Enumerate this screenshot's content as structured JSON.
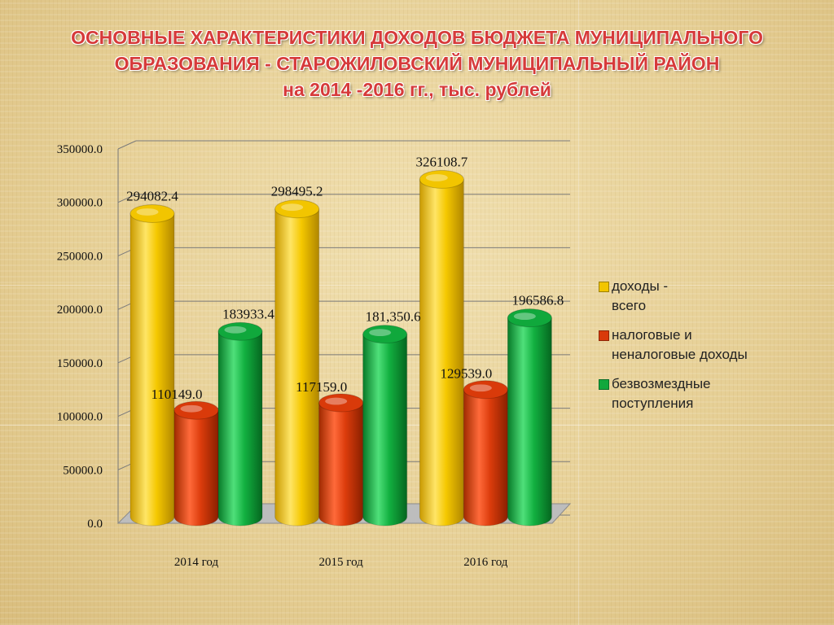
{
  "title_lines": [
    "ОСНОВНЫЕ ХАРАКТЕРИСТИКИ ДОХОДОВ БЮДЖЕТА  МУНИЦИПАЛЬНОГО",
    "ОБРАЗОВАНИЯ - СТАРОЖИЛОВСКИЙ МУНИЦИПАЛЬНЫЙ РАЙОН",
    "на 2014 -2016 гг., тыс. рублей"
  ],
  "chart_data": {
    "type": "bar",
    "categories": [
      "2014 год",
      "2015 год",
      "2016 год"
    ],
    "series": [
      {
        "name": "доходы - всего",
        "legend_lines": [
          "доходы -",
          "всего"
        ],
        "color": "#f2c500",
        "values": [
          294082.4,
          298495.2,
          326108.7
        ],
        "labels": [
          "294082.4",
          "298495.2",
          "326108.7"
        ]
      },
      {
        "name": "налоговые и неналоговые доходы",
        "legend_lines": [
          "налоговые и",
          "неналоговые доходы"
        ],
        "color": "#d93a0a",
        "values": [
          110149.0,
          117159.0,
          129539.0
        ],
        "labels": [
          "110149.0",
          "117159.0",
          "129539.0"
        ]
      },
      {
        "name": "безвозмездные поступления",
        "legend_lines": [
          "безвозмездные",
          "поступления"
        ],
        "color": "#10a83c",
        "values": [
          183933.4,
          181350.6,
          196586.8
        ],
        "labels": [
          "183933.4",
          "181,350.6",
          "196586.8"
        ]
      }
    ],
    "y_ticks": [
      "0.0",
      "50000.0",
      "100000.0",
      "150000.0",
      "200000.0",
      "250000.0",
      "300000.0",
      "350000.0"
    ],
    "ylim": [
      0,
      350000
    ],
    "grid": true,
    "legend_position": "right"
  }
}
